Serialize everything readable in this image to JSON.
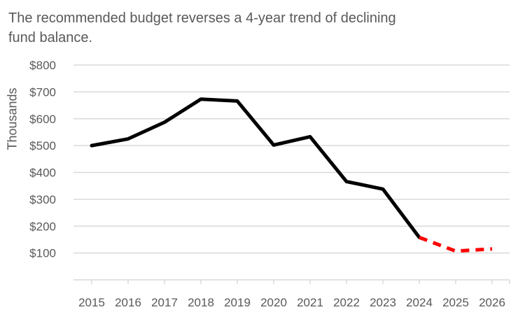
{
  "chart_data": {
    "type": "line",
    "title": "The recommended budget reverses a 4-year trend of declining fund balance.",
    "xlabel": "",
    "ylabel": "Thousands",
    "ylim": [
      0,
      800
    ],
    "yticks": [
      100,
      200,
      300,
      400,
      500,
      600,
      700,
      800
    ],
    "ytick_labels": [
      "$100",
      "$200",
      "$300",
      "$400",
      "$500",
      "$600",
      "$700",
      "$800"
    ],
    "grid": true,
    "categories": [
      "2015",
      "2016",
      "2017",
      "2018",
      "2019",
      "2020",
      "2021",
      "2022",
      "2023",
      "2024",
      "2025",
      "2026"
    ],
    "series": [
      {
        "style": "solid",
        "color": "#000000",
        "values": [
          500,
          525,
          587,
          673,
          666,
          502,
          533,
          366,
          338,
          158,
          null,
          null
        ]
      },
      {
        "style": "dashed",
        "color": "#ff0000",
        "values": [
          null,
          null,
          null,
          null,
          null,
          null,
          null,
          null,
          null,
          158,
          107,
          115
        ]
      }
    ]
  }
}
